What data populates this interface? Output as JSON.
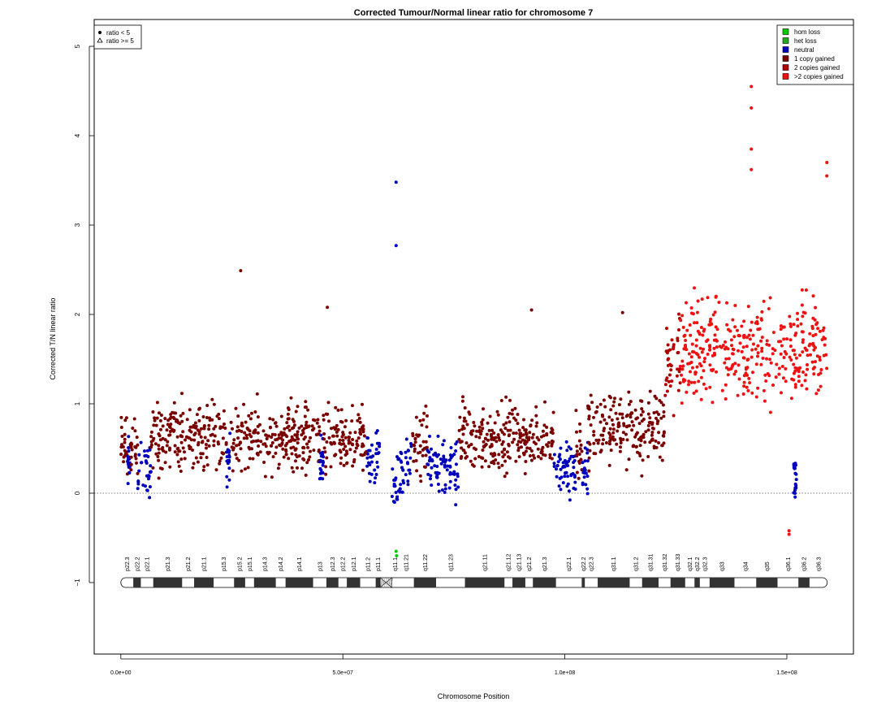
{
  "chart_data": {
    "type": "scatter",
    "title": "Corrected Tumour/Normal linear ratio for chromosome  7",
    "xlabel": "Chromosome Position",
    "ylabel": "Corrected T/N linear ratio",
    "xlim": [
      -6000000,
      165000000
    ],
    "ylim": [
      -1.8,
      5.3
    ],
    "x_ticks": [
      0,
      50000000,
      100000000,
      150000000
    ],
    "x_tick_labels": [
      "0.0e+00",
      "5.0e+07",
      "1.0e+08",
      "1.5e+08"
    ],
    "y_ticks": [
      -1,
      0,
      1,
      2,
      3,
      4,
      5
    ],
    "y_tick_labels": [
      "−1",
      "0",
      "1",
      "2",
      "3",
      "4",
      "5"
    ],
    "reference_line_y": 0,
    "shape_legend": {
      "position": "top-left",
      "entries": [
        {
          "label": "ratio < 5",
          "symbol": "circle"
        },
        {
          "label": "ratio >= 5",
          "symbol": "triangle"
        }
      ]
    },
    "color_legend": {
      "position": "top-right",
      "entries": [
        {
          "label": "hom loss",
          "color": "#00cc00"
        },
        {
          "label": "het loss",
          "color": "#22aa22"
        },
        {
          "label": "neutral",
          "color": "#0000bb"
        },
        {
          "label": "1 copy gained",
          "color": "#7a0000"
        },
        {
          "label": "2 copies gained",
          "color": "#b00000"
        },
        {
          "label": ">2 copies gained",
          "color": "#ee1111"
        }
      ]
    },
    "segments": [
      {
        "start": 0,
        "end": 1500000,
        "state": "1 copy gained",
        "center": 0.55,
        "spread": 0.35
      },
      {
        "start": 1500000,
        "end": 2200000,
        "state": "neutral",
        "center": 0.35,
        "spread": 0.3
      },
      {
        "start": 2200000,
        "end": 3800000,
        "state": "1 copy gained",
        "center": 0.55,
        "spread": 0.35
      },
      {
        "start": 3800000,
        "end": 6800000,
        "state": "neutral",
        "center": 0.25,
        "spread": 0.3
      },
      {
        "start": 6800000,
        "end": 23800000,
        "state": "1 copy gained",
        "center": 0.65,
        "spread": 0.38
      },
      {
        "start": 23800000,
        "end": 24600000,
        "state": "neutral",
        "center": 0.35,
        "spread": 0.3
      },
      {
        "start": 24600000,
        "end": 44800000,
        "state": "1 copy gained",
        "center": 0.62,
        "spread": 0.38
      },
      {
        "start": 44800000,
        "end": 45600000,
        "state": "neutral",
        "center": 0.35,
        "spread": 0.3
      },
      {
        "start": 45600000,
        "end": 55400000,
        "state": "1 copy gained",
        "center": 0.62,
        "spread": 0.38
      },
      {
        "start": 55400000,
        "end": 58400000,
        "state": "neutral",
        "center": 0.35,
        "spread": 0.35
      },
      {
        "start": 61000000,
        "end": 63000000,
        "state": "neutral",
        "center": 0.15,
        "spread": 0.45
      },
      {
        "start": 63000000,
        "end": 65500000,
        "state": "neutral",
        "center": 0.35,
        "spread": 0.35
      },
      {
        "start": 65500000,
        "end": 69000000,
        "state": "1 copy gained",
        "center": 0.55,
        "spread": 0.38
      },
      {
        "start": 69000000,
        "end": 71000000,
        "state": "neutral",
        "center": 0.35,
        "spread": 0.35
      },
      {
        "start": 71000000,
        "end": 76000000,
        "state": "neutral",
        "center": 0.3,
        "spread": 0.38
      },
      {
        "start": 76000000,
        "end": 97500000,
        "state": "1 copy gained",
        "center": 0.62,
        "spread": 0.38
      },
      {
        "start": 97500000,
        "end": 102500000,
        "state": "neutral",
        "center": 0.3,
        "spread": 0.35
      },
      {
        "start": 102500000,
        "end": 104000000,
        "state": "1 copy gained",
        "center": 0.5,
        "spread": 0.35
      },
      {
        "start": 104000000,
        "end": 105200000,
        "state": "neutral",
        "center": 0.3,
        "spread": 0.3
      },
      {
        "start": 105200000,
        "end": 122500000,
        "state": "1 copy gained",
        "center": 0.72,
        "spread": 0.4
      },
      {
        "start": 122500000,
        "end": 126000000,
        "state": "2 copies gained",
        "center": 1.45,
        "spread": 0.45
      },
      {
        "start": 126000000,
        "end": 159000000,
        "state": ">2 copies gained",
        "center": 1.6,
        "spread": 0.6
      },
      {
        "start": 151500000,
        "end": 152200000,
        "state": "neutral",
        "center": 0.2,
        "spread": 0.3
      }
    ],
    "outliers": [
      {
        "x": 62000000,
        "y": 3.48,
        "state": "neutral"
      },
      {
        "x": 62000000,
        "y": 2.77,
        "state": "neutral"
      },
      {
        "x": 62000000,
        "y": -0.65,
        "state": "hom loss"
      },
      {
        "x": 62100000,
        "y": -0.7,
        "state": "hom loss"
      },
      {
        "x": 27000000,
        "y": 2.49,
        "state": "1 copy gained"
      },
      {
        "x": 46500000,
        "y": 2.08,
        "state": "1 copy gained"
      },
      {
        "x": 92500000,
        "y": 2.05,
        "state": "1 copy gained"
      },
      {
        "x": 113000000,
        "y": 2.02,
        "state": "1 copy gained"
      },
      {
        "x": 142000000,
        "y": 4.55,
        "state": ">2 copies gained"
      },
      {
        "x": 142000000,
        "y": 4.31,
        "state": ">2 copies gained"
      },
      {
        "x": 142000000,
        "y": 3.85,
        "state": ">2 copies gained"
      },
      {
        "x": 142000000,
        "y": 3.62,
        "state": ">2 copies gained"
      },
      {
        "x": 159000000,
        "y": 3.7,
        "state": ">2 copies gained"
      },
      {
        "x": 159000000,
        "y": 3.55,
        "state": ">2 copies gained"
      },
      {
        "x": 150500000,
        "y": -0.42,
        "state": ">2 copies gained"
      },
      {
        "x": 150500000,
        "y": -0.46,
        "state": ">2 copies gained"
      }
    ],
    "ideogram": {
      "centromere": [
        58400000,
        61000000
      ],
      "bands": [
        {
          "name": "p22.3",
          "start": 0,
          "end": 2800000,
          "stain": "white"
        },
        {
          "name": "p22.2",
          "start": 2800000,
          "end": 4500000,
          "stain": "dark"
        },
        {
          "name": "p22.1",
          "start": 4500000,
          "end": 7300000,
          "stain": "white"
        },
        {
          "name": "p21.3",
          "start": 7300000,
          "end": 13800000,
          "stain": "dark"
        },
        {
          "name": "p21.2",
          "start": 13800000,
          "end": 16500000,
          "stain": "white"
        },
        {
          "name": "p21.1",
          "start": 16500000,
          "end": 20900000,
          "stain": "dark"
        },
        {
          "name": "p15.3",
          "start": 20900000,
          "end": 25500000,
          "stain": "white"
        },
        {
          "name": "p15.2",
          "start": 25500000,
          "end": 28000000,
          "stain": "dark"
        },
        {
          "name": "p15.1",
          "start": 28000000,
          "end": 30000000,
          "stain": "white"
        },
        {
          "name": "p14.3",
          "start": 30000000,
          "end": 34900000,
          "stain": "dark"
        },
        {
          "name": "p14.2",
          "start": 34900000,
          "end": 37100000,
          "stain": "white"
        },
        {
          "name": "p14.1",
          "start": 37100000,
          "end": 43300000,
          "stain": "dark"
        },
        {
          "name": "p13",
          "start": 43300000,
          "end": 46300000,
          "stain": "white"
        },
        {
          "name": "p12.3",
          "start": 46300000,
          "end": 49000000,
          "stain": "dark"
        },
        {
          "name": "p12.2",
          "start": 49000000,
          "end": 50900000,
          "stain": "white"
        },
        {
          "name": "p12.1",
          "start": 50900000,
          "end": 53900000,
          "stain": "dark"
        },
        {
          "name": "p11.2",
          "start": 53900000,
          "end": 57400000,
          "stain": "white"
        },
        {
          "name": "p11.1",
          "start": 57400000,
          "end": 58400000,
          "stain": "dark"
        },
        {
          "name": "q11.1",
          "start": 61000000,
          "end": 62500000,
          "stain": "white"
        },
        {
          "name": "q11.21",
          "start": 62500000,
          "end": 66000000,
          "stain": "white"
        },
        {
          "name": "q11.22",
          "start": 66000000,
          "end": 71000000,
          "stain": "dark"
        },
        {
          "name": "q11.23",
          "start": 71000000,
          "end": 77500000,
          "stain": "white"
        },
        {
          "name": "q21.11",
          "start": 77500000,
          "end": 86400000,
          "stain": "dark"
        },
        {
          "name": "q21.12",
          "start": 86400000,
          "end": 88200000,
          "stain": "white"
        },
        {
          "name": "q21.13",
          "start": 88200000,
          "end": 91100000,
          "stain": "dark"
        },
        {
          "name": "q21.2",
          "start": 91100000,
          "end": 92800000,
          "stain": "white"
        },
        {
          "name": "q21.3",
          "start": 92800000,
          "end": 98000000,
          "stain": "dark"
        },
        {
          "name": "q22.1",
          "start": 98000000,
          "end": 103800000,
          "stain": "white"
        },
        {
          "name": "q22.2",
          "start": 103800000,
          "end": 104500000,
          "stain": "dark"
        },
        {
          "name": "q22.3",
          "start": 104500000,
          "end": 107400000,
          "stain": "white"
        },
        {
          "name": "q31.1",
          "start": 107400000,
          "end": 114600000,
          "stain": "dark"
        },
        {
          "name": "q31.2",
          "start": 114600000,
          "end": 117400000,
          "stain": "white"
        },
        {
          "name": "q31.31",
          "start": 117400000,
          "end": 121100000,
          "stain": "dark"
        },
        {
          "name": "q31.32",
          "start": 121100000,
          "end": 123800000,
          "stain": "white"
        },
        {
          "name": "q31.33",
          "start": 123800000,
          "end": 127100000,
          "stain": "dark"
        },
        {
          "name": "q32.1",
          "start": 127100000,
          "end": 129200000,
          "stain": "white"
        },
        {
          "name": "q32.2",
          "start": 129200000,
          "end": 130400000,
          "stain": "dark"
        },
        {
          "name": "q32.3",
          "start": 130400000,
          "end": 132600000,
          "stain": "white"
        },
        {
          "name": "q33",
          "start": 132600000,
          "end": 138200000,
          "stain": "dark"
        },
        {
          "name": "q34",
          "start": 138200000,
          "end": 143100000,
          "stain": "white"
        },
        {
          "name": "q35",
          "start": 143100000,
          "end": 147900000,
          "stain": "dark"
        },
        {
          "name": "q36.1",
          "start": 147900000,
          "end": 152600000,
          "stain": "white"
        },
        {
          "name": "q36.2",
          "start": 152600000,
          "end": 155100000,
          "stain": "dark"
        },
        {
          "name": "q36.3",
          "start": 155100000,
          "end": 159100000,
          "stain": "white"
        }
      ]
    }
  }
}
